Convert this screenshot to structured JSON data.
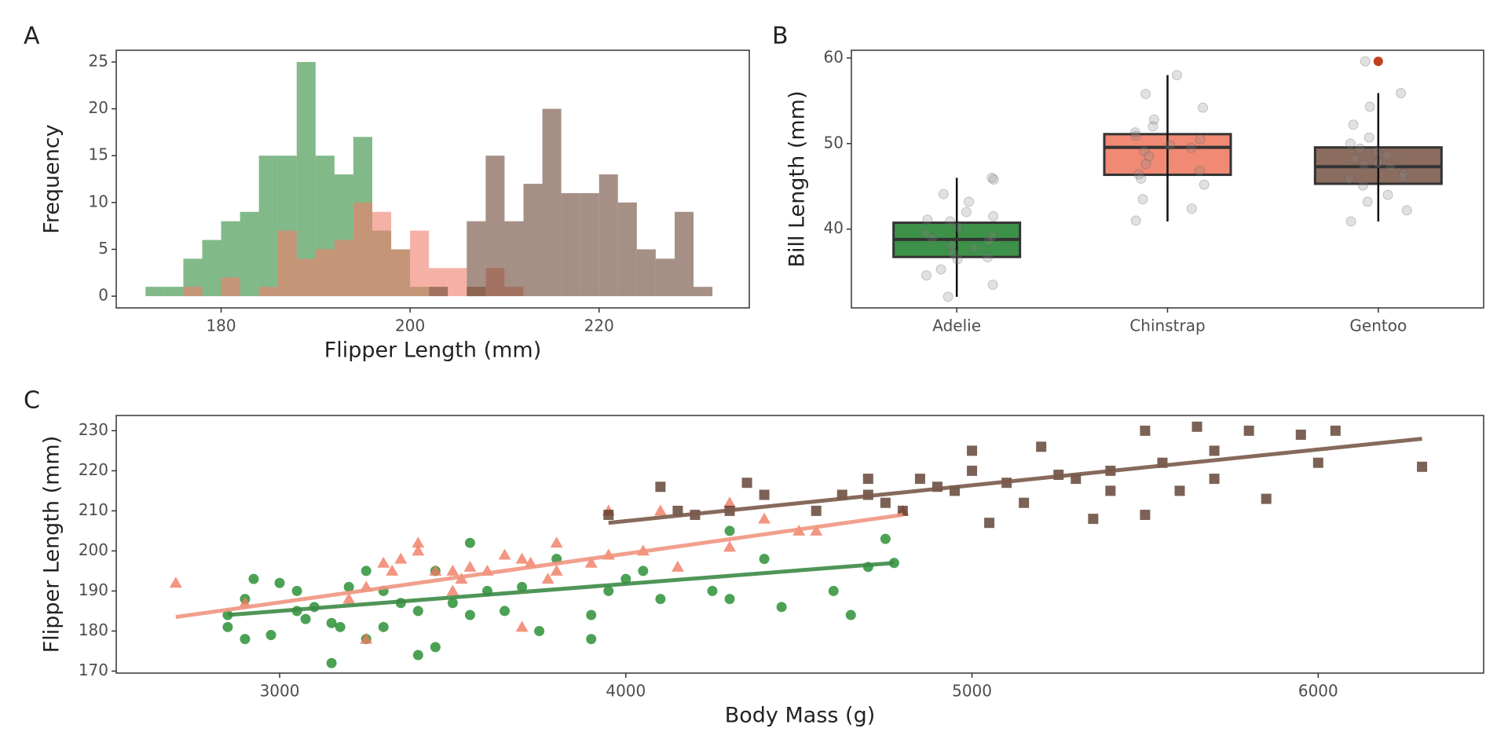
{
  "chart_data": [
    {
      "type": "histogram",
      "label": "A",
      "x_label": "Flipper Length (mm)",
      "y_label": "Frequency",
      "bins": [
        172,
        174,
        176,
        178,
        180,
        182,
        184,
        186,
        188,
        190,
        192,
        194,
        196,
        198,
        200,
        202,
        204,
        206,
        208,
        210,
        212,
        214,
        216,
        218,
        220,
        222,
        224,
        226,
        228,
        230,
        232
      ],
      "series": [
        {
          "color": "#2e8b3a",
          "values": [
            1,
            1,
            4,
            6,
            8,
            9,
            15,
            15,
            25,
            15,
            13,
            17,
            7,
            5,
            1,
            0,
            0,
            1,
            0,
            0,
            0,
            0,
            0,
            0,
            0,
            0,
            0,
            0,
            0,
            0
          ]
        },
        {
          "color": "#f07d6a",
          "values": [
            0,
            0,
            1,
            0,
            2,
            0,
            1,
            7,
            4,
            5,
            6,
            10,
            9,
            5,
            7,
            3,
            3,
            1,
            3,
            1,
            0,
            0,
            0,
            0,
            0,
            0,
            0,
            0,
            0,
            0
          ]
        },
        {
          "color": "#6b4636",
          "values": [
            0,
            0,
            0,
            0,
            0,
            0,
            0,
            0,
            0,
            0,
            0,
            0,
            0,
            0,
            0,
            1,
            0,
            8,
            15,
            8,
            12,
            20,
            11,
            11,
            13,
            10,
            5,
            4,
            9,
            1
          ]
        }
      ],
      "xlim": [
        168.9,
        235.9
      ],
      "xticks": [
        180,
        200,
        220
      ],
      "ylim": [
        -1.25,
        26.25
      ],
      "yticks": [
        0,
        5,
        10,
        15,
        20,
        25
      ],
      "grid": false
    },
    {
      "type": "box",
      "label": "B",
      "y_label": "Bill Length (mm)",
      "categories": [
        "Adelie",
        "Chinstrap",
        "Gentoo"
      ],
      "colors": [
        "#3d9148",
        "#f08a74",
        "#8b6d5f"
      ],
      "flier_color": "#c0401e",
      "boxes": [
        {
          "whislo": 32.1,
          "q1": 36.75,
          "med": 38.8,
          "q3": 40.75,
          "whishi": 46.0,
          "fliers": []
        },
        {
          "whislo": 40.9,
          "q1": 46.35,
          "med": 49.55,
          "q3": 51.1,
          "whishi": 58.0,
          "fliers": []
        },
        {
          "whislo": 40.9,
          "q1": 45.3,
          "med": 47.3,
          "q3": 49.55,
          "whishi": 55.9,
          "fliers": [
            59.6
          ]
        }
      ],
      "points": [
        [
          36.5,
          37.2,
          38.1,
          38.9,
          39.5,
          40.2,
          41.1,
          42.0,
          43.2,
          45.8,
          35.3,
          33.5,
          32.1,
          37.8,
          39.2,
          40.9,
          36.7,
          38.6,
          41.5,
          34.6,
          46.0,
          44.1
        ],
        [
          58.0,
          54.2,
          52.8,
          51.3,
          50.5,
          49.8,
          49.1,
          48.5,
          47.6,
          46.4,
          45.9,
          45.2,
          43.5,
          42.4,
          41.0,
          55.8,
          50.9,
          46.8,
          49.5,
          52.0
        ],
        [
          59.6,
          55.9,
          54.3,
          52.2,
          50.7,
          49.4,
          48.6,
          47.8,
          47.2,
          46.5,
          45.9,
          45.1,
          44.0,
          43.2,
          42.2,
          40.9,
          50.0,
          46.1,
          48.2,
          49.0,
          47.5
        ]
      ],
      "ylim": [
        30.8,
        60.9
      ],
      "yticks": [
        40,
        50,
        60
      ],
      "grid": false
    },
    {
      "type": "scatter",
      "label": "C",
      "x_label": "Body Mass (g)",
      "y_label": "Flipper Length (mm)",
      "series": [
        {
          "color": "#1f8a2a",
          "marker": "circle",
          "x": [
            2850,
            2850,
            2900,
            2900,
            2925,
            2975,
            3000,
            3050,
            3050,
            3075,
            3100,
            3150,
            3150,
            3175,
            3200,
            3250,
            3250,
            3300,
            3300,
            3350,
            3400,
            3400,
            3450,
            3450,
            3500,
            3550,
            3550,
            3600,
            3650,
            3700,
            3750,
            3800,
            3900,
            3900,
            3950,
            4000,
            4050,
            4100,
            4250,
            4300,
            4300,
            4400,
            4450,
            4600,
            4650,
            4700,
            4750,
            4775
          ],
          "y": [
            181,
            184,
            178,
            188,
            193,
            179,
            192,
            190,
            185,
            183,
            186,
            182,
            172,
            181,
            191,
            178,
            195,
            181,
            190,
            187,
            174,
            185,
            176,
            195,
            187,
            202,
            184,
            190,
            185,
            191,
            180,
            198,
            178,
            184,
            190,
            193,
            195,
            188,
            190,
            188,
            205,
            198,
            186,
            190,
            184,
            196,
            203,
            197
          ],
          "fit": {
            "x": [
              2850,
              4775
            ],
            "y": [
              184,
              197
            ]
          },
          "fit_color": "#3c8a45"
        },
        {
          "color": "#f07a62",
          "marker": "triangle",
          "x": [
            2700,
            2900,
            3200,
            3250,
            3250,
            3300,
            3325,
            3350,
            3400,
            3400,
            3450,
            3500,
            3500,
            3525,
            3550,
            3600,
            3650,
            3700,
            3700,
            3725,
            3775,
            3800,
            3800,
            3900,
            3950,
            3950,
            4050,
            4100,
            4150,
            4300,
            4300,
            4400,
            4500,
            4550,
            4800
          ],
          "y": [
            192,
            187,
            188,
            178,
            191,
            197,
            195,
            198,
            200,
            202,
            195,
            195,
            190,
            193,
            196,
            195,
            199,
            198,
            181,
            197,
            193,
            202,
            195,
            197,
            210,
            199,
            200,
            210,
            196,
            212,
            201,
            208,
            205,
            205,
            210
          ],
          "fit": {
            "x": [
              2700,
              4800
            ],
            "y": [
              183.5,
              209
            ]
          },
          "fit_color": "#f0957f"
        },
        {
          "color": "#5a3a2c",
          "marker": "square",
          "x": [
            3950,
            4100,
            4150,
            4200,
            4300,
            4350,
            4400,
            4550,
            4625,
            4700,
            4700,
            4750,
            4800,
            4850,
            4900,
            4950,
            5000,
            5000,
            5050,
            5100,
            5150,
            5200,
            5250,
            5300,
            5350,
            5400,
            5400,
            5500,
            5500,
            5550,
            5600,
            5650,
            5700,
            5700,
            5800,
            5850,
            5950,
            6000,
            6050,
            6300
          ],
          "y": [
            209,
            216,
            210,
            209,
            210,
            217,
            214,
            210,
            214,
            218,
            214,
            212,
            210,
            218,
            216,
            215,
            220,
            225,
            207,
            217,
            212,
            226,
            219,
            218,
            208,
            215,
            220,
            230,
            209,
            222,
            215,
            231,
            218,
            225,
            230,
            213,
            229,
            222,
            230,
            221
          ],
          "fit": {
            "x": [
              3950,
              6300
            ],
            "y": [
              207,
              228
            ]
          },
          "fit_color": "#7a5a4a"
        }
      ],
      "xlim": [
        2528,
        6478
      ],
      "xticks": [
        3000,
        4000,
        5000,
        6000
      ],
      "ylim": [
        169.5,
        233.8
      ],
      "yticks": [
        170,
        180,
        190,
        200,
        210,
        220,
        230
      ],
      "grid": false
    }
  ]
}
